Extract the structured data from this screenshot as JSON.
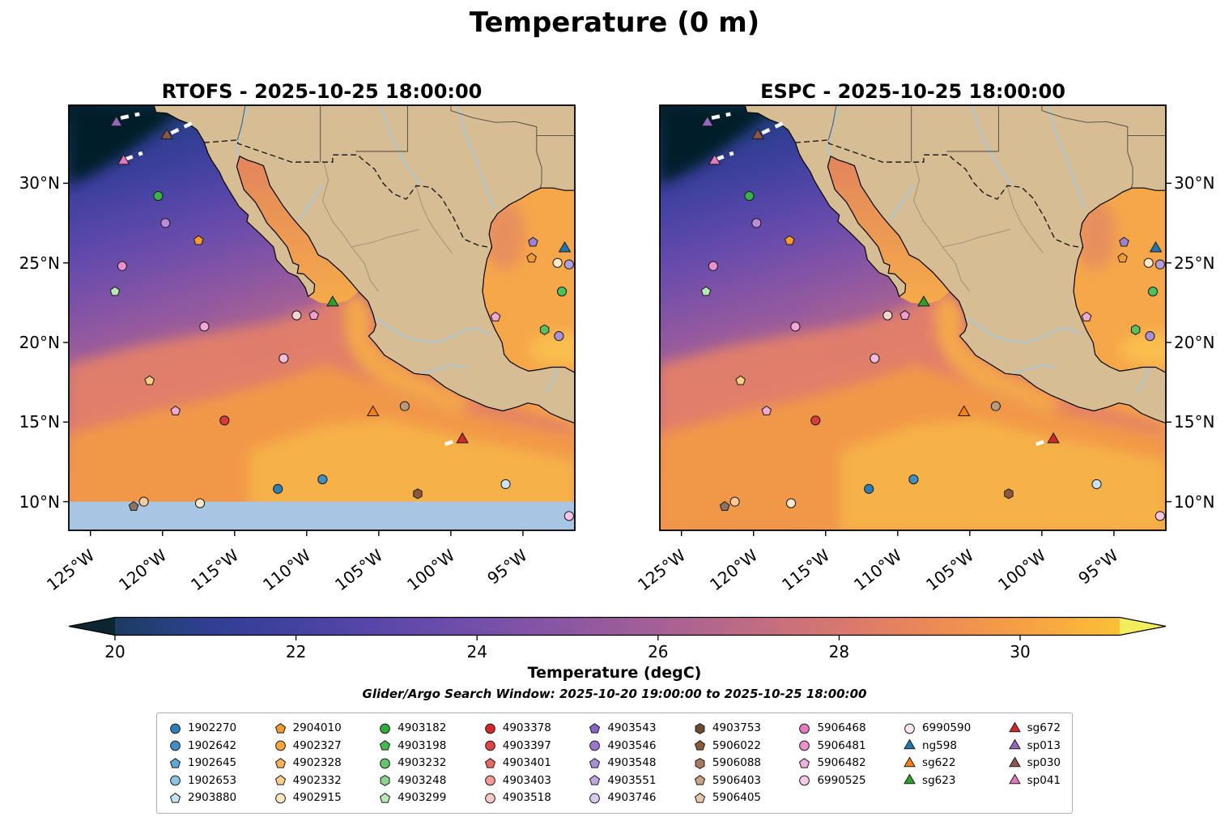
{
  "title": "Temperature (0 m)",
  "subtitle": "Glider/Argo Search Window: 2025-10-20 19:00:00 to 2025-10-25 18:00:00",
  "panels": [
    {
      "id": "rtofs",
      "title": "RTOFS - 2025-10-25 18:00:00",
      "yticks_side": "left",
      "nodata_band": {
        "lat_max": 10,
        "color": "#a8c6e3"
      }
    },
    {
      "id": "espc",
      "title": "ESPC - 2025-10-25 18:00:00",
      "yticks_side": "right",
      "nodata_band": null
    }
  ],
  "axes": {
    "lon_min": -126.5,
    "lon_max": -91.4,
    "lat_min": 8.2,
    "lat_max": 34.9,
    "xticks": [
      {
        "v": -125,
        "label": "125°W"
      },
      {
        "v": -120,
        "label": "120°W"
      },
      {
        "v": -115,
        "label": "115°W"
      },
      {
        "v": -110,
        "label": "110°W"
      },
      {
        "v": -105,
        "label": "105°W"
      },
      {
        "v": -100,
        "label": "100°W"
      },
      {
        "v": -95,
        "label": "95°W"
      }
    ],
    "yticks": [
      {
        "v": 30,
        "label": "30°N"
      },
      {
        "v": 25,
        "label": "25°N"
      },
      {
        "v": 20,
        "label": "20°N"
      },
      {
        "v": 15,
        "label": "15°N"
      },
      {
        "v": 10,
        "label": "10°N"
      }
    ]
  },
  "colorbar": {
    "label": "Temperature (degC)",
    "vmin": 20,
    "vmax": 31.1,
    "ticks": [
      20,
      22,
      24,
      26,
      28,
      30
    ],
    "under": "#0b2531",
    "over": "#f2ec5f",
    "colors": [
      "#1b3b5f",
      "#24407a",
      "#2f3f90",
      "#3a3f9b",
      "#4542a1",
      "#5045a6",
      "#5c48a9",
      "#684caa",
      "#744fa9",
      "#8153a6",
      "#8d57a1",
      "#995c9b",
      "#a66194",
      "#b3668b",
      "#c06c82",
      "#cd7278",
      "#d9786d",
      "#e48161",
      "#ec8b55",
      "#f2964b",
      "#f6a243",
      "#f9b13c",
      "#fbc136"
    ]
  },
  "legend": {
    "columns": [
      [
        {
          "id": "1902270",
          "shape": "circle",
          "color": "#2d7fb8"
        },
        {
          "id": "1902642",
          "shape": "circle",
          "color": "#3d8ec6"
        },
        {
          "id": "1902645",
          "shape": "pentagon",
          "color": "#5fa8d3"
        },
        {
          "id": "1902653",
          "shape": "circle",
          "color": "#8cc3e2"
        },
        {
          "id": "2903880",
          "shape": "pentagon",
          "color": "#c2e0f2"
        }
      ],
      [
        {
          "id": "2904010",
          "shape": "pentagon",
          "color": "#f59c2f"
        },
        {
          "id": "4902327",
          "shape": "circle",
          "color": "#f9a63c"
        },
        {
          "id": "4902328",
          "shape": "pentagon",
          "color": "#fbb45a"
        },
        {
          "id": "4902332",
          "shape": "pentagon",
          "color": "#fccf8d"
        },
        {
          "id": "4902915",
          "shape": "circle",
          "color": "#fde7c0"
        }
      ],
      [
        {
          "id": "4903182",
          "shape": "circle",
          "color": "#2fae3e"
        },
        {
          "id": "4903198",
          "shape": "pentagon",
          "color": "#46ba50"
        },
        {
          "id": "4903232",
          "shape": "circle",
          "color": "#63c56c"
        },
        {
          "id": "4903248",
          "shape": "hexagon",
          "color": "#8ad48e"
        },
        {
          "id": "4903299",
          "shape": "pentagon",
          "color": "#bce6b6"
        }
      ],
      [
        {
          "id": "4903378",
          "shape": "circle",
          "color": "#d62728"
        },
        {
          "id": "4903397",
          "shape": "circle",
          "color": "#e04343"
        },
        {
          "id": "4903401",
          "shape": "pentagon",
          "color": "#ea6a62"
        },
        {
          "id": "4903403",
          "shape": "circle",
          "color": "#f29a92"
        },
        {
          "id": "4903518",
          "shape": "circle",
          "color": "#f8c8c4"
        }
      ],
      [
        {
          "id": "4903543",
          "shape": "pentagon",
          "color": "#8a63c6"
        },
        {
          "id": "4903546",
          "shape": "circle",
          "color": "#9b77cf"
        },
        {
          "id": "4903548",
          "shape": "pentagon",
          "color": "#ab8cd8"
        },
        {
          "id": "4903551",
          "shape": "pentagon",
          "color": "#c0a8e2"
        },
        {
          "id": "4903746",
          "shape": "circle",
          "color": "#d9c9ef"
        }
      ],
      [
        {
          "id": "4903753",
          "shape": "hexagon",
          "color": "#6e4a2f"
        },
        {
          "id": "5906022",
          "shape": "pentagon",
          "color": "#8a5a3c"
        },
        {
          "id": "5906088",
          "shape": "hexagon",
          "color": "#a87a5e"
        },
        {
          "id": "5906403",
          "shape": "pentagon",
          "color": "#c9a183"
        },
        {
          "id": "5906405",
          "shape": "pentagon",
          "color": "#e4c7ab"
        }
      ],
      [
        {
          "id": "5906468",
          "shape": "circle",
          "color": "#e377c2"
        },
        {
          "id": "5906481",
          "shape": "circle",
          "color": "#ea92cf"
        },
        {
          "id": "5906482",
          "shape": "pentagon",
          "color": "#f1addb"
        },
        {
          "id": "6990525",
          "shape": "circle",
          "color": "#f7c9e7"
        }
      ],
      [
        {
          "id": "6990590",
          "shape": "circle",
          "color": "#fce4f3"
        },
        {
          "id": "ng598",
          "shape": "triangle",
          "color": "#1f77b4"
        },
        {
          "id": "sg622",
          "shape": "triangle",
          "color": "#ff7f0e"
        },
        {
          "id": "sg623",
          "shape": "triangle",
          "color": "#2ca02c"
        }
      ],
      [
        {
          "id": "sg672",
          "shape": "triangle",
          "color": "#d62728"
        },
        {
          "id": "sp013",
          "shape": "triangle",
          "color": "#9467bd"
        },
        {
          "id": "sp030",
          "shape": "triangle",
          "color": "#8c564b"
        },
        {
          "id": "sp041",
          "shape": "triangle",
          "color": "#e377c2"
        }
      ]
    ]
  },
  "chart_data": {
    "type": "heatmap",
    "subtype": "geographic SST comparison, two panels sharing one colorbar",
    "field": "sea water temperature at 0 m",
    "units": "degC",
    "panels": [
      "RTOFS - 2025-10-25 18:00:00",
      "ESPC - 2025-10-25 18:00:00"
    ],
    "region": {
      "lon_min": -126.5,
      "lon_max": -91.4,
      "lat_min": 8.2,
      "lat_max": 34.9
    },
    "value_range_shown": [
      20,
      31
    ],
    "gradient_description": "cold dark-navy water (<20 degC) in NW Pacific corner grading through purple (22-25) and mauve/salmon (26-28) to orange (29-31) in the tropics, Gulf of California and Gulf of Mexico; RTOFS panel has a light-blue no-data band south of 10N",
    "markers": [
      {
        "shape": "triangle",
        "color": "#9467bd",
        "lon": -123.2,
        "lat": 33.8,
        "id": "sp013"
      },
      {
        "shape": "triangle",
        "color": "#8c564b",
        "lon": -119.7,
        "lat": 33.0,
        "id": "sp030"
      },
      {
        "shape": "triangle",
        "color": "#e377c2",
        "lon": -122.7,
        "lat": 31.4,
        "id": "sp041"
      },
      {
        "shape": "circle",
        "color": "#35b34a",
        "lon": -120.3,
        "lat": 29.2
      },
      {
        "shape": "circle",
        "color": "#bd8bd9",
        "lon": -119.8,
        "lat": 27.5
      },
      {
        "shape": "pentagon",
        "color": "#f59c2f",
        "lon": -117.5,
        "lat": 26.4
      },
      {
        "shape": "circle",
        "color": "#ea8fd0",
        "lon": -122.8,
        "lat": 24.8
      },
      {
        "shape": "pentagon",
        "color": "#b9e6b2",
        "lon": -123.3,
        "lat": 23.2
      },
      {
        "shape": "circle",
        "color": "#f2a9da",
        "lon": -117.1,
        "lat": 21.0
      },
      {
        "shape": "pentagon",
        "color": "#fbcf8a",
        "lon": -120.9,
        "lat": 17.6
      },
      {
        "shape": "pentagon",
        "color": "#f2a9d4",
        "lon": -119.1,
        "lat": 15.7
      },
      {
        "shape": "circle",
        "color": "#d93a3a",
        "lon": -115.7,
        "lat": 15.1
      },
      {
        "shape": "circle",
        "color": "#f4bbdc",
        "lon": -111.6,
        "lat": 19.0
      },
      {
        "shape": "circle",
        "color": "#f6d5cf",
        "lon": -110.7,
        "lat": 21.7
      },
      {
        "shape": "pentagon",
        "color": "#ef9ed2",
        "lon": -109.5,
        "lat": 21.7
      },
      {
        "shape": "triangle",
        "color": "#2ca02c",
        "lon": -108.2,
        "lat": 22.5,
        "id": "sg623"
      },
      {
        "shape": "circle",
        "color": "#2d7fb8",
        "lon": -112.0,
        "lat": 10.8
      },
      {
        "shape": "circle",
        "color": "#3f8fc4",
        "lon": -108.9,
        "lat": 11.4
      },
      {
        "shape": "pentagon",
        "color": "#8a7360",
        "lon": -122.0,
        "lat": 9.7
      },
      {
        "shape": "circle",
        "color": "#f8c99b",
        "lon": -121.3,
        "lat": 10.0
      },
      {
        "shape": "circle",
        "color": "#fbe9c9",
        "lon": -117.4,
        "lat": 9.9
      },
      {
        "shape": "triangle",
        "color": "#ff7f0e",
        "lon": -105.4,
        "lat": 15.6,
        "id": "sg622"
      },
      {
        "shape": "circle",
        "color": "#b99a7a",
        "lon": -103.2,
        "lat": 16.0
      },
      {
        "shape": "triangle",
        "color": "#d62728",
        "lon": -99.2,
        "lat": 13.9,
        "id": "sg672"
      },
      {
        "shape": "hexagon",
        "color": "#8a5a3c",
        "lon": -102.3,
        "lat": 10.5
      },
      {
        "shape": "circle",
        "color": "#cbe5f6",
        "lon": -96.2,
        "lat": 11.1
      },
      {
        "shape": "circle",
        "color": "#f9c6e4",
        "lon": -91.8,
        "lat": 9.1
      },
      {
        "shape": "pentagon",
        "color": "#9d82d2",
        "lon": -94.3,
        "lat": 26.3
      },
      {
        "shape": "triangle",
        "color": "#1f77b4",
        "lon": -92.1,
        "lat": 25.9,
        "id": "ng598"
      },
      {
        "shape": "pentagon",
        "color": "#f59c2f",
        "lon": -94.4,
        "lat": 25.3
      },
      {
        "shape": "circle",
        "color": "#fce9c9",
        "lon": -92.6,
        "lat": 25.0
      },
      {
        "shape": "circle",
        "color": "#b39ddb",
        "lon": -91.8,
        "lat": 24.9
      },
      {
        "shape": "circle",
        "color": "#4bc15a",
        "lon": -92.3,
        "lat": 23.2
      },
      {
        "shape": "pentagon",
        "color": "#f2a9d4",
        "lon": -96.9,
        "lat": 21.6
      },
      {
        "shape": "hexagon",
        "color": "#5abf5e",
        "lon": -93.5,
        "lat": 20.8
      },
      {
        "shape": "circle",
        "color": "#ab90d8",
        "lon": -92.5,
        "lat": 20.4
      }
    ],
    "tracks": [
      {
        "points": [
          [
            -122.9,
            34.1
          ],
          [
            -121.6,
            34.35
          ]
        ]
      },
      {
        "points": [
          [
            -119.4,
            33.15
          ],
          [
            -117.9,
            33.8
          ]
        ]
      },
      {
        "points": [
          [
            -122.6,
            31.5
          ],
          [
            -121.4,
            31.9
          ]
        ]
      },
      {
        "points": [
          [
            -100.4,
            13.6
          ],
          [
            -99.6,
            13.85
          ]
        ]
      }
    ]
  }
}
